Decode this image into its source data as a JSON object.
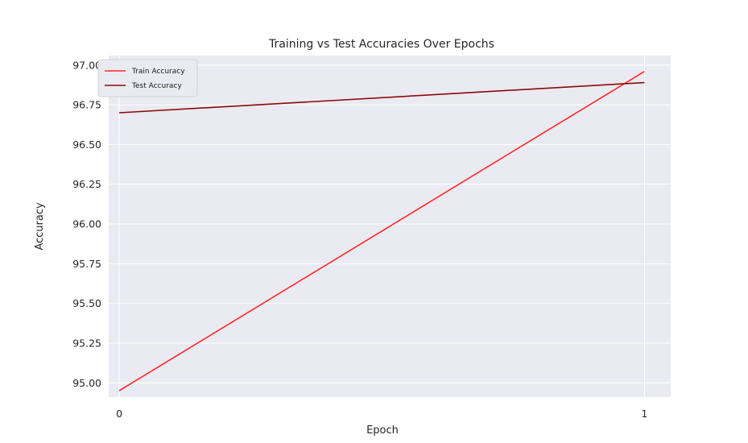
{
  "chart_data": {
    "type": "line",
    "title": "Training vs Test Accuracies Over Epochs",
    "xlabel": "Epoch",
    "ylabel": "Accuracy",
    "x": [
      0,
      1
    ],
    "x_ticks": [
      "0",
      "1"
    ],
    "xlim": [
      -0.02,
      1.05
    ],
    "ylim": [
      94.91,
      97.06
    ],
    "y_ticks": [
      "95.00",
      "95.25",
      "95.50",
      "95.75",
      "96.00",
      "96.25",
      "96.50",
      "96.75",
      "97.00"
    ],
    "y_tick_values": [
      95.0,
      95.25,
      95.5,
      95.75,
      96.0,
      96.25,
      96.5,
      96.75,
      97.0
    ],
    "grid": true,
    "legend_position": "top-left",
    "background_color": "#eaeaf2",
    "series": [
      {
        "name": "Train Accuracy",
        "values": [
          94.95,
          96.96
        ],
        "color": "#ff2a2a"
      },
      {
        "name": "Test Accuracy",
        "values": [
          96.7,
          96.89
        ],
        "color": "#8b0a0a"
      }
    ]
  }
}
